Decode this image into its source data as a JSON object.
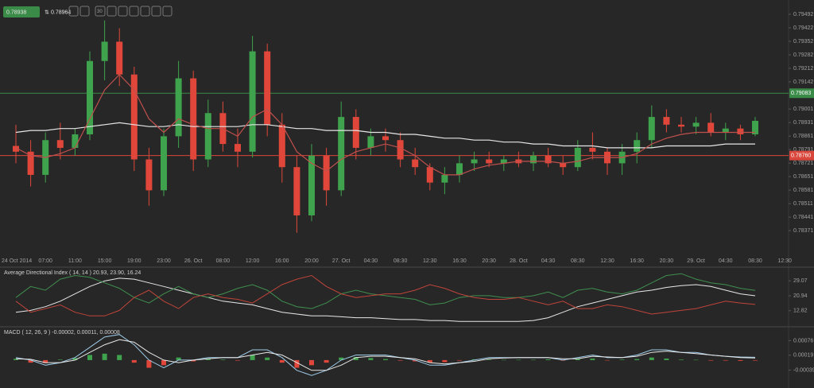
{
  "header": {
    "bid": "0.78938",
    "ask": "0.78964",
    "period": "30"
  },
  "chart_data": [
    {
      "type": "candlestick",
      "categories": [
        "24 Oct 2014",
        null,
        "07:00",
        null,
        "11:00",
        null,
        "15:00",
        null,
        "19:00",
        null,
        "23:00",
        null,
        "26. Oct",
        null,
        "08:00",
        null,
        "12:00",
        null,
        "16:00",
        null,
        "20:00",
        null,
        "27. Oct",
        null,
        "04:30",
        null,
        "08:30",
        null,
        "12:30",
        null,
        "16:30",
        null,
        "20:30",
        null,
        "28. Oct",
        null,
        "04:30",
        null,
        "08:30",
        null,
        "12:30",
        null,
        "16:30",
        null,
        "20:30",
        null,
        "29. Oct",
        null,
        "04:30",
        null,
        "08:30",
        null,
        "12:30"
      ],
      "open": [
        0.7881,
        0.7878,
        0.7866,
        0.7884,
        0.788,
        0.7887,
        0.7925,
        0.7935,
        0.7918,
        0.7874,
        0.7858,
        0.7886,
        0.7916,
        0.7874,
        0.7898,
        0.7882,
        0.7878,
        0.793,
        0.7892,
        0.787,
        0.7845,
        0.7876,
        0.7858,
        0.7896,
        0.788,
        0.7886,
        0.7884,
        0.7874,
        0.787,
        0.7862,
        0.7866,
        0.7872,
        0.7874,
        0.7872,
        0.7874,
        0.7872,
        0.7876,
        0.7872,
        0.787,
        0.788,
        0.7878,
        0.7872,
        0.7878,
        0.7884,
        0.7896,
        0.7892,
        0.7891,
        0.7893,
        0.7888,
        0.789,
        0.7887,
        null,
        null
      ],
      "high": [
        0.7892,
        0.7884,
        0.7888,
        0.7893,
        0.789,
        0.793,
        0.7946,
        0.7942,
        0.7922,
        0.788,
        0.789,
        0.7925,
        0.792,
        0.7905,
        0.7904,
        0.789,
        0.7938,
        0.7934,
        0.7898,
        0.7876,
        0.7882,
        0.788,
        0.7904,
        0.79,
        0.789,
        0.789,
        0.7888,
        0.788,
        0.7872,
        0.787,
        0.7876,
        0.7878,
        0.7878,
        0.7876,
        0.7878,
        0.7878,
        0.788,
        0.7876,
        0.7884,
        0.7888,
        0.788,
        0.7882,
        0.7888,
        0.7902,
        0.79,
        0.7896,
        0.7896,
        0.7898,
        0.7893,
        0.7892,
        0.7896,
        null,
        null
      ],
      "low": [
        0.7872,
        0.786,
        0.7862,
        0.7874,
        0.7876,
        0.7884,
        0.7915,
        0.7912,
        0.7868,
        0.785,
        0.7855,
        0.788,
        0.7868,
        0.787,
        0.7878,
        0.787,
        0.7875,
        0.7886,
        0.7862,
        0.7836,
        0.7842,
        0.785,
        0.7855,
        0.7874,
        0.7876,
        0.7878,
        0.787,
        0.7866,
        0.7858,
        0.7856,
        0.7862,
        0.7868,
        0.787,
        0.7868,
        0.787,
        0.7868,
        0.787,
        0.7866,
        0.7868,
        0.7874,
        0.7866,
        0.7866,
        0.7872,
        0.788,
        0.7888,
        0.7888,
        0.7887,
        0.7886,
        0.7884,
        0.7884,
        0.7886,
        null,
        null
      ],
      "close": [
        0.7878,
        0.7866,
        0.7884,
        0.788,
        0.7887,
        0.7925,
        0.7935,
        0.7918,
        0.7874,
        0.7858,
        0.7886,
        0.7916,
        0.7874,
        0.7898,
        0.7882,
        0.7878,
        0.793,
        0.7892,
        0.787,
        0.7845,
        0.7876,
        0.7858,
        0.7896,
        0.788,
        0.7886,
        0.7884,
        0.7874,
        0.787,
        0.7862,
        0.7866,
        0.7872,
        0.7874,
        0.7872,
        0.7874,
        0.7872,
        0.7876,
        0.7872,
        0.787,
        0.788,
        0.7878,
        0.7872,
        0.7878,
        0.7884,
        0.7896,
        0.7892,
        0.7891,
        0.7893,
        0.7888,
        0.789,
        0.7887,
        0.7894,
        null,
        null
      ],
      "up_color": "#3fa34d",
      "down_color": "#e0473a",
      "overlays": [
        {
          "color": "#e6e6e6",
          "values": [
            0.7888,
            0.7889,
            0.7889,
            0.789,
            0.789,
            0.7891,
            0.7892,
            0.7893,
            0.7892,
            0.7891,
            0.7891,
            0.7892,
            0.7891,
            0.7891,
            0.7891,
            0.7891,
            0.7892,
            0.7892,
            0.7891,
            0.789,
            0.789,
            0.7889,
            0.7889,
            0.7889,
            0.7888,
            0.7888,
            0.7887,
            0.7887,
            0.7886,
            0.7885,
            0.7885,
            0.7884,
            0.7884,
            0.7883,
            0.7883,
            0.7882,
            0.7882,
            0.7881,
            0.7881,
            0.7881,
            0.788,
            0.788,
            0.788,
            0.788,
            0.7881,
            0.7881,
            0.7881,
            0.7881,
            0.7882,
            0.7882,
            0.7882,
            null,
            null
          ]
        },
        {
          "color": "#c0504d",
          "values": [
            0.788,
            0.7876,
            0.7875,
            0.7877,
            0.788,
            0.7895,
            0.791,
            0.7918,
            0.791,
            0.7895,
            0.7888,
            0.7895,
            0.7892,
            0.789,
            0.789,
            0.7886,
            0.7896,
            0.79,
            0.7892,
            0.7878,
            0.7872,
            0.7868,
            0.7874,
            0.7878,
            0.788,
            0.7882,
            0.788,
            0.7876,
            0.787,
            0.7866,
            0.7866,
            0.7869,
            0.7871,
            0.7872,
            0.7873,
            0.7873,
            0.7873,
            0.7872,
            0.7873,
            0.7875,
            0.7875,
            0.7875,
            0.7877,
            0.7882,
            0.7885,
            0.7887,
            0.7888,
            0.7888,
            0.7888,
            0.7888,
            0.7888,
            null,
            null
          ]
        }
      ],
      "price_lines": [
        {
          "value": 0.79083,
          "color": "#3a8a48"
        },
        {
          "value": 0.7876,
          "label": "0.78760",
          "color": "#d9463b"
        }
      ],
      "ylim": [
        0.78256,
        0.79566
      ],
      "yticks": [
        0.79492,
        0.79422,
        0.79352,
        0.79282,
        0.79212,
        0.79142,
        0.79001,
        0.78931,
        0.78861,
        0.78791,
        0.78721,
        0.78651,
        0.78581,
        0.78511,
        0.78441,
        0.78371
      ]
    },
    {
      "type": "line",
      "title": "Average Directional Index ( 14, 14 ) 20.93, 23.90, 16.24",
      "series": [
        {
          "color": "#e8e8e8",
          "values": [
            12,
            13,
            15,
            18,
            22,
            26,
            29,
            30.5,
            30,
            28,
            26,
            24,
            22,
            20,
            18,
            17,
            16,
            14,
            12,
            11,
            10,
            10,
            9.5,
            9,
            9,
            8.5,
            8,
            8,
            7.5,
            7.5,
            7,
            7,
            7,
            7,
            7,
            7.5,
            9,
            12,
            15,
            17,
            19,
            21,
            23,
            24,
            25.5,
            26.5,
            27,
            26,
            24,
            22,
            20.93,
            null,
            null
          ]
        },
        {
          "color": "#3f8f4f",
          "values": [
            20,
            26,
            24,
            30,
            32,
            31,
            28,
            25,
            20,
            17,
            22,
            26,
            22,
            20,
            22,
            25,
            27,
            24,
            18,
            15,
            14,
            17,
            22,
            24,
            22,
            21,
            20,
            19,
            16,
            17,
            20,
            21,
            21,
            20,
            20,
            21,
            23,
            20,
            24,
            25,
            23,
            22,
            24,
            28,
            32,
            33,
            30,
            28,
            27,
            25,
            23.9,
            null,
            null
          ]
        },
        {
          "color": "#c0443a",
          "values": [
            18,
            12,
            14,
            16,
            12,
            10,
            10,
            13,
            20,
            24,
            18,
            14,
            20,
            22,
            20,
            19,
            17,
            22,
            27,
            30,
            32,
            26,
            22,
            20,
            21,
            22,
            22,
            24,
            27,
            25,
            22,
            20,
            19,
            19,
            20,
            18,
            16,
            18,
            14,
            14,
            16,
            15,
            13,
            11,
            12,
            13,
            14,
            16,
            18,
            17,
            16.24,
            null,
            null
          ]
        }
      ],
      "ylim": [
        4.5,
        36.1
      ],
      "yticks": [
        29.07,
        20.94,
        12.82
      ]
    },
    {
      "type": "macd",
      "title": "MACD ( 12, 26, 9 ) -0.00002, 0.00011, 0.00008",
      "histogram": [
        5e-05,
        -0.0001,
        -0.00012,
        2e-05,
        8e-05,
        0.0002,
        0.00025,
        0.0002,
        -0.0001,
        -0.0003,
        -0.0002,
        0.0001,
        -5e-05,
        5e-05,
        2e-05,
        -2e-05,
        0.0002,
        0.0001,
        -0.0001,
        -0.0003,
        -0.0002,
        -0.0001,
        0.0001,
        0.00012,
        8e-05,
        4e-05,
        -2e-05,
        -5e-05,
        -0.0001,
        -8e-05,
        -2e-05,
        3e-05,
        2e-05,
        1e-05,
        1e-05,
        1e-05,
        3e-05,
        -2e-05,
        5e-05,
        6e-05,
        -1e-05,
        2e-05,
        4e-05,
        0.0001,
        6e-05,
        2e-05,
        1e-05,
        -2e-05,
        -2e-05,
        -3e-05,
        -2e-05,
        null,
        null
      ],
      "up_color": "#3fa34d",
      "down_color": "#e0473a",
      "series": [
        {
          "color": "#9ecbe8",
          "values": [
            0.0001,
            0,
            -0.0002,
            -0.0001,
            0.0001,
            0.0005,
            0.0009,
            0.001,
            0.0006,
            0,
            -0.0003,
            0,
            0,
            0.0001,
            0.0001,
            0.0001,
            0.0004,
            0.0004,
            0.0001,
            -0.0004,
            -0.0006,
            -0.0004,
            0,
            0.0002,
            0.0002,
            0.0002,
            0.0001,
            0,
            -0.0002,
            -0.0002,
            -0.0001,
            0,
            0.0001,
            0.0001,
            0.0001,
            0.0001,
            0.0001,
            0,
            0.0001,
            0.0002,
            0.0001,
            0.0001,
            0.0002,
            0.0004,
            0.0004,
            0.0003,
            0.0003,
            0.0002,
            0.00015,
            0.00012,
            0.00011,
            null,
            null
          ]
        },
        {
          "color": "#e8e8e8",
          "values": [
            5e-05,
            3e-05,
            -0.0001,
            -0.0001,
            0,
            0.0003,
            0.0006,
            0.0008,
            0.0007,
            0.0003,
            0,
            -0.0001,
            0,
            5e-05,
            0.0001,
            0.0001,
            0.0002,
            0.0003,
            0.0002,
            -0.0001,
            -0.0004,
            -0.0004,
            -0.0002,
            0.0001,
            0.00015,
            0.00015,
            0.0001,
            5e-05,
            -0.0001,
            -0.00015,
            -0.0001,
            -5e-05,
            5e-05,
            8e-05,
            0.0001,
            0.0001,
            0.0001,
            5e-05,
            5e-05,
            0.00015,
            0.00012,
            0.0001,
            0.00015,
            0.0003,
            0.00035,
            0.0003,
            0.00025,
            0.0002,
            0.00015,
            0.0001,
            8e-05,
            null,
            null
          ]
        }
      ],
      "ylim": [
        -0.00109,
        0.00127
      ],
      "yticks": [
        0.00076,
        0.00019,
        -0.00039
      ]
    }
  ]
}
